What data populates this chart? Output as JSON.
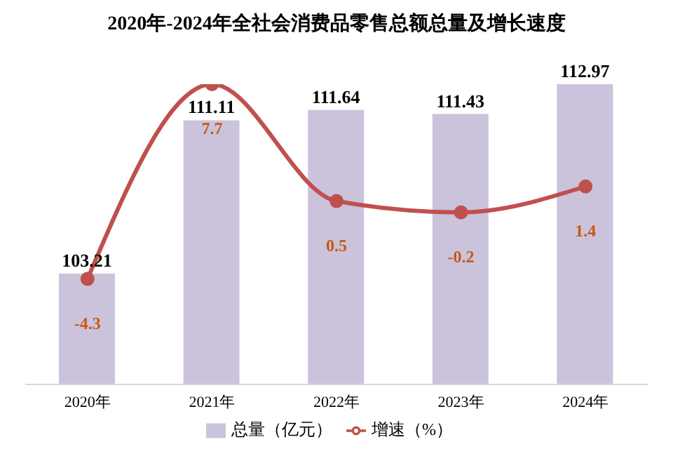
{
  "chart_data": {
    "type": "bar",
    "title": "2020年-2024年全社会消费品零售总额总量及增长速度",
    "categories": [
      "2020年",
      "2021年",
      "2022年",
      "2023年",
      "2024年"
    ],
    "series": [
      {
        "name": "总量（亿元）",
        "color": "#cbc3dc",
        "values": [
          103.21,
          111.11,
          111.64,
          111.43,
          112.97
        ]
      },
      {
        "name": "增速（%）",
        "type": "line",
        "axis": "y2",
        "color": "#c0504d",
        "values": [
          -4.3,
          7.7,
          0.5,
          -0.2,
          1.4
        ]
      }
    ],
    "ylim": [
      97.5,
      112.97
    ],
    "y2lim": [
      -10.8,
      7.7
    ],
    "tick_labels": "x",
    "data_labels": true,
    "legend": "bottom",
    "grid": false,
    "marker": "circle",
    "line_style": "solid"
  }
}
